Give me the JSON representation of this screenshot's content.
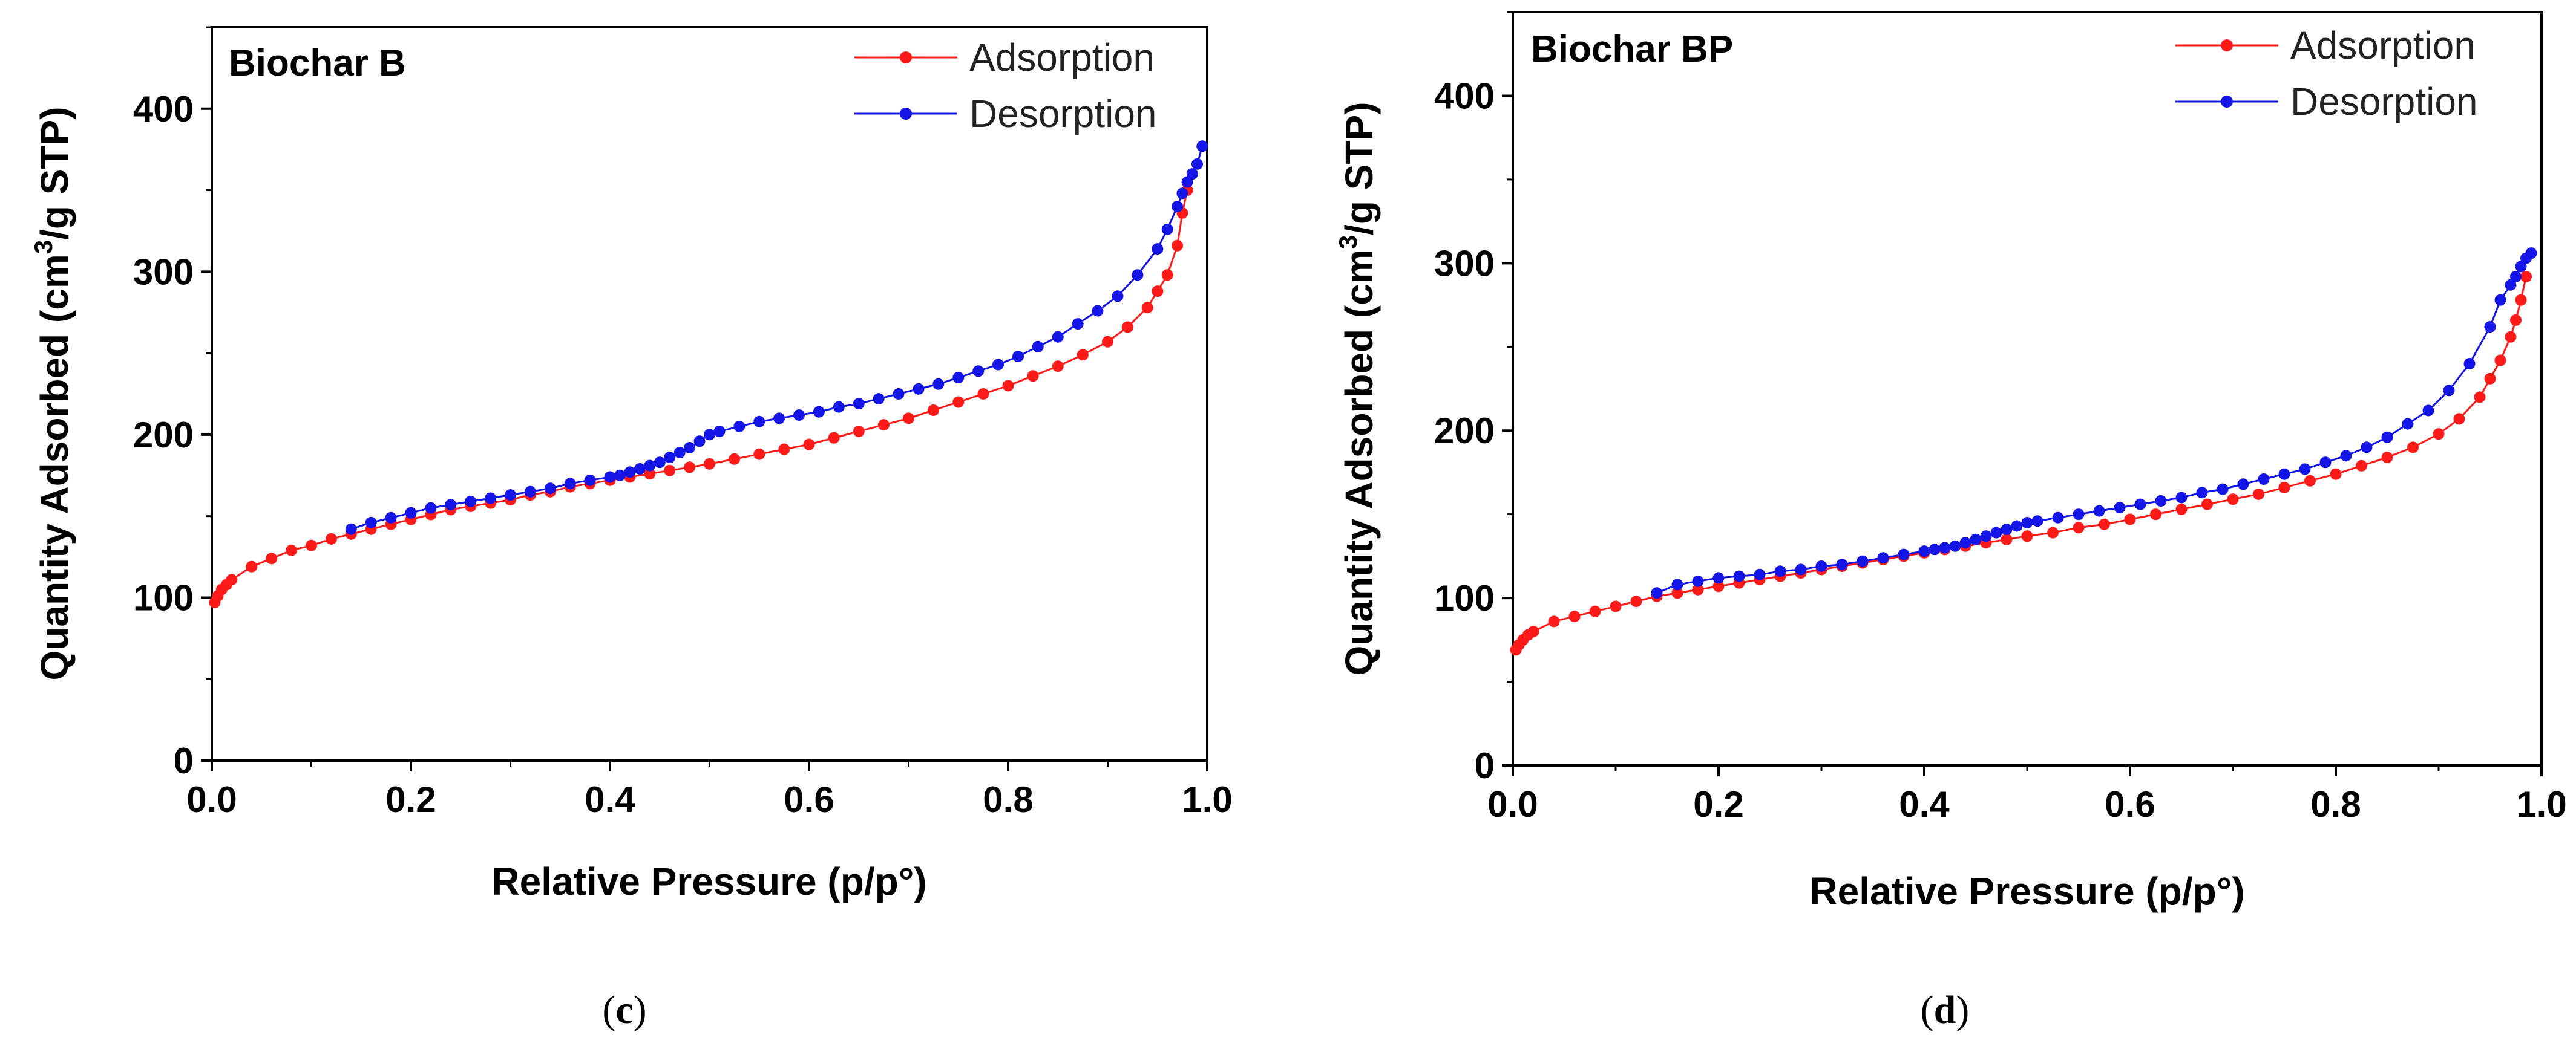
{
  "figure": {
    "panels": [
      {
        "caption": "c"
      },
      {
        "caption": "d"
      }
    ]
  },
  "colors": {
    "adsorption": "#ff1a1a",
    "desorption": "#1414e6",
    "axis": "#000000"
  },
  "chart_data": [
    {
      "type": "line",
      "title": "Biochar B",
      "xlabel": "Relative Pressure (p/p°)",
      "ylabel": "Quantity Adsorbed (cm³/g STP)",
      "ylabel_parts": [
        "Quantity Adsorbed (cm",
        "3",
        "/g STP)"
      ],
      "xlim": [
        0.0,
        1.0
      ],
      "ylim": [
        0,
        450
      ],
      "xticks": [
        0.0,
        0.2,
        0.4,
        0.6,
        0.8,
        1.0
      ],
      "xtick_labels": [
        "0.0",
        "0.2",
        "0.4",
        "0.6",
        "0.8",
        "1.0"
      ],
      "yticks": [
        0,
        100,
        200,
        300,
        400
      ],
      "ytick_labels": [
        "0",
        "100",
        "200",
        "300",
        "400"
      ],
      "legend_position": "top-right",
      "series": [
        {
          "name": "Adsorption",
          "color": "#ff1a1a",
          "x": [
            0.003,
            0.006,
            0.01,
            0.015,
            0.02,
            0.04,
            0.06,
            0.08,
            0.1,
            0.12,
            0.14,
            0.16,
            0.18,
            0.2,
            0.22,
            0.24,
            0.26,
            0.28,
            0.3,
            0.32,
            0.34,
            0.36,
            0.38,
            0.4,
            0.42,
            0.44,
            0.46,
            0.48,
            0.5,
            0.525,
            0.55,
            0.575,
            0.6,
            0.625,
            0.65,
            0.675,
            0.7,
            0.725,
            0.75,
            0.775,
            0.8,
            0.825,
            0.85,
            0.875,
            0.9,
            0.92,
            0.94,
            0.95,
            0.96,
            0.97,
            0.975,
            0.98
          ],
          "y": [
            97,
            101,
            105,
            108,
            111,
            119,
            124,
            129,
            132,
            136,
            139,
            142,
            145,
            148,
            151,
            154,
            156,
            158,
            160,
            163,
            165,
            168,
            170,
            172,
            174,
            176,
            178,
            180,
            182,
            185,
            188,
            191,
            194,
            198,
            202,
            206,
            210,
            215,
            220,
            225,
            230,
            236,
            242,
            249,
            257,
            266,
            278,
            288,
            298,
            316,
            336,
            350
          ]
        },
        {
          "name": "Desorption",
          "color": "#1414e6",
          "x": [
            0.995,
            0.99,
            0.985,
            0.98,
            0.975,
            0.97,
            0.96,
            0.95,
            0.93,
            0.91,
            0.89,
            0.87,
            0.85,
            0.83,
            0.81,
            0.79,
            0.77,
            0.75,
            0.73,
            0.71,
            0.69,
            0.67,
            0.65,
            0.63,
            0.61,
            0.59,
            0.57,
            0.55,
            0.53,
            0.51,
            0.5,
            0.49,
            0.48,
            0.47,
            0.46,
            0.45,
            0.44,
            0.43,
            0.42,
            0.41,
            0.4,
            0.38,
            0.36,
            0.34,
            0.32,
            0.3,
            0.28,
            0.26,
            0.24,
            0.22,
            0.2,
            0.18,
            0.16,
            0.14
          ],
          "y": [
            377,
            366,
            360,
            355,
            348,
            340,
            326,
            314,
            298,
            285,
            276,
            268,
            260,
            254,
            248,
            243,
            239,
            235,
            231,
            228,
            225,
            222,
            219,
            217,
            214,
            212,
            210,
            208,
            205,
            202,
            200,
            196,
            192,
            189,
            186,
            183,
            181,
            179,
            177,
            175,
            174,
            172,
            170,
            167,
            165,
            163,
            161,
            159,
            157,
            155,
            152,
            149,
            146,
            142
          ]
        }
      ]
    },
    {
      "type": "line",
      "title": "Biochar BP",
      "xlabel": "Relative Pressure (p/p°)",
      "ylabel": "Quantity Adsorbed (cm³/g STP)",
      "ylabel_parts": [
        "Quantity Adsorbed (cm",
        "3",
        "/g STP)"
      ],
      "xlim": [
        0.0,
        1.0
      ],
      "ylim": [
        0,
        450
      ],
      "xticks": [
        0.0,
        0.2,
        0.4,
        0.6,
        0.8,
        1.0
      ],
      "xtick_labels": [
        "0.0",
        "0.2",
        "0.4",
        "0.6",
        "0.8",
        "1.0"
      ],
      "yticks": [
        0,
        100,
        200,
        300,
        400
      ],
      "ytick_labels": [
        "0",
        "100",
        "200",
        "300",
        "400"
      ],
      "legend_position": "top-right",
      "series": [
        {
          "name": "Adsorption",
          "color": "#ff1a1a",
          "x": [
            0.003,
            0.006,
            0.01,
            0.015,
            0.02,
            0.04,
            0.06,
            0.08,
            0.1,
            0.12,
            0.14,
            0.16,
            0.18,
            0.2,
            0.22,
            0.24,
            0.26,
            0.28,
            0.3,
            0.32,
            0.34,
            0.36,
            0.38,
            0.4,
            0.42,
            0.44,
            0.46,
            0.48,
            0.5,
            0.525,
            0.55,
            0.575,
            0.6,
            0.625,
            0.65,
            0.675,
            0.7,
            0.725,
            0.75,
            0.775,
            0.8,
            0.825,
            0.85,
            0.875,
            0.9,
            0.92,
            0.94,
            0.95,
            0.96,
            0.97,
            0.975,
            0.98,
            0.985
          ],
          "y": [
            69,
            72,
            75,
            78,
            80,
            86,
            89,
            92,
            95,
            98,
            101,
            103,
            105,
            107,
            109,
            111,
            113,
            115,
            117,
            119,
            121,
            123,
            125,
            127,
            129,
            131,
            133,
            135,
            137,
            139,
            142,
            144,
            147,
            150,
            153,
            156,
            159,
            162,
            166,
            170,
            174,
            179,
            184,
            190,
            198,
            207,
            220,
            231,
            242,
            256,
            266,
            278,
            292
          ]
        },
        {
          "name": "Desorption",
          "color": "#1414e6",
          "x": [
            0.99,
            0.985,
            0.98,
            0.975,
            0.97,
            0.96,
            0.95,
            0.93,
            0.91,
            0.89,
            0.87,
            0.85,
            0.83,
            0.81,
            0.79,
            0.77,
            0.75,
            0.73,
            0.71,
            0.69,
            0.67,
            0.65,
            0.63,
            0.61,
            0.59,
            0.57,
            0.55,
            0.53,
            0.51,
            0.5,
            0.49,
            0.48,
            0.47,
            0.46,
            0.45,
            0.44,
            0.43,
            0.42,
            0.41,
            0.4,
            0.38,
            0.36,
            0.34,
            0.32,
            0.3,
            0.28,
            0.26,
            0.24,
            0.22,
            0.2,
            0.18,
            0.16,
            0.14
          ],
          "y": [
            306,
            303,
            298,
            292,
            287,
            278,
            262,
            240,
            224,
            212,
            204,
            196,
            190,
            185,
            181,
            177,
            174,
            171,
            168,
            165,
            163,
            160,
            158,
            156,
            154,
            152,
            150,
            148,
            146,
            145,
            143,
            141,
            139,
            137,
            135,
            133,
            131,
            130,
            129,
            128,
            126,
            124,
            122,
            120,
            119,
            117,
            116,
            114,
            113,
            112,
            110,
            108,
            103
          ]
        }
      ]
    }
  ]
}
